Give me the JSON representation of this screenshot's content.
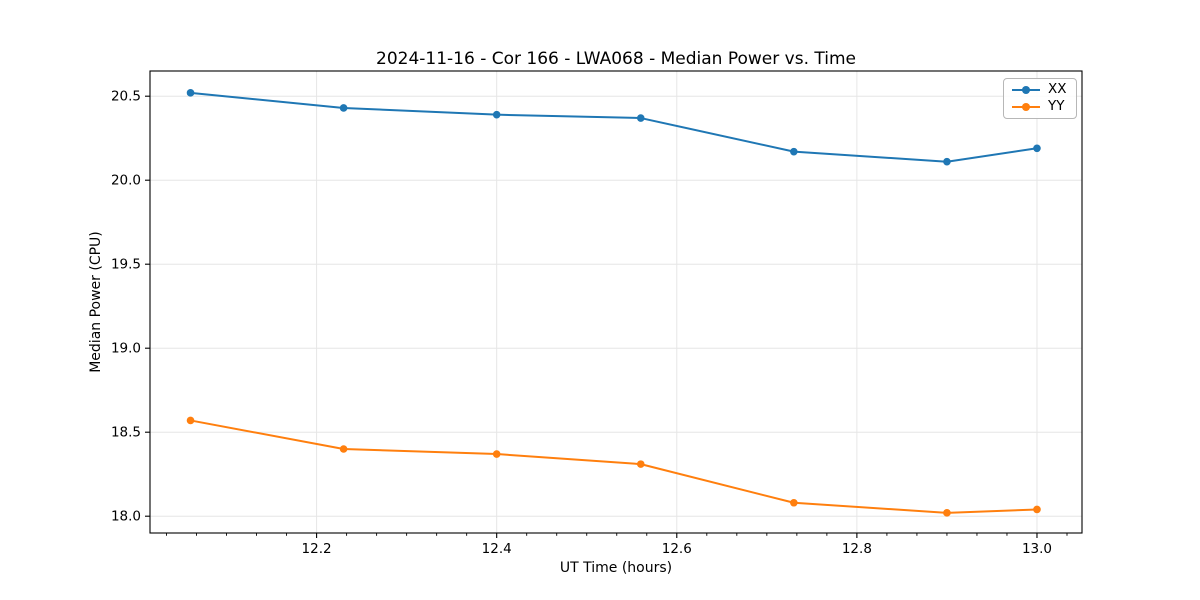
{
  "chart_data": {
    "type": "line",
    "title": "2024-11-16 - Cor 166 - LWA068 - Median Power vs. Time",
    "xlabel": "UT Time (hours)",
    "ylabel": "Median Power (CPU)",
    "x": [
      12.06,
      12.23,
      12.4,
      12.56,
      12.73,
      12.9,
      13.0
    ],
    "series": [
      {
        "name": "XX",
        "color": "#1f77b4",
        "values": [
          20.52,
          20.43,
          20.39,
          20.37,
          20.17,
          20.11,
          20.19
        ]
      },
      {
        "name": "YY",
        "color": "#ff7f0e",
        "values": [
          18.57,
          18.4,
          18.37,
          18.31,
          18.08,
          18.02,
          18.04
        ]
      }
    ],
    "xticks": [
      12.2,
      12.4,
      12.6,
      12.8,
      13.0
    ],
    "yticks": [
      18.0,
      18.5,
      19.0,
      19.5,
      20.0,
      20.5
    ],
    "xlim": [
      12.015,
      13.05
    ],
    "ylim": [
      17.9,
      20.65
    ],
    "x_minor_step": 0.0333333,
    "grid": true,
    "grid_color": "#e6e6e6",
    "spine_color": "#000000",
    "legend_position": "upper right",
    "marker": "circle",
    "marker_radius": 3.8,
    "line_width": 2
  }
}
